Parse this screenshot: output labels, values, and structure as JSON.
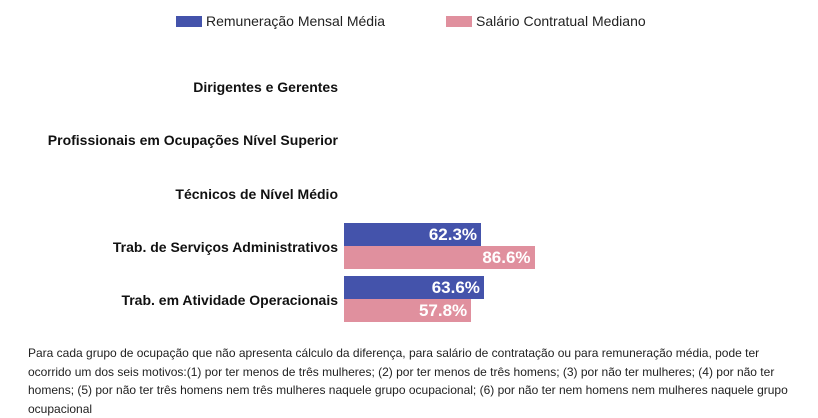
{
  "chart_data": {
    "type": "bar",
    "orientation": "horizontal",
    "categories": [
      "Dirigentes e Gerentes",
      "Profissionais em Ocupações Nível Superior",
      "Técnicos de Nível Médio",
      "Trab. de Serviços Administrativos",
      "Trab. em Atividade Operacionais"
    ],
    "series": [
      {
        "name": "Remuneração Mensal Média",
        "color": "#4453ab",
        "values": [
          null,
          null,
          null,
          62.3,
          63.6
        ],
        "labels": [
          "",
          "",
          "",
          "62.3%",
          "63.6%"
        ]
      },
      {
        "name": "Salário Contratual Mediano",
        "color": "#e0909e",
        "values": [
          null,
          null,
          null,
          86.6,
          57.8
        ],
        "labels": [
          "",
          "",
          "",
          "86.6%",
          "57.8%"
        ]
      }
    ],
    "legend_position": "top",
    "grid": false
  },
  "note": "Para cada grupo de ocupação que não apresenta cálculo da diferença, para salário de contratação ou para remuneração média, pode ter ocorrido um dos seis motivos:(1) por ter menos de três mulheres; (2) por ter menos de três homens; (3) por não ter mulheres; (4) por não ter homens; (5) por não ter três homens nem três mulheres naquele grupo ocupacional; (6) por não ter nem homens nem mulheres naquele grupo ocupacional"
}
